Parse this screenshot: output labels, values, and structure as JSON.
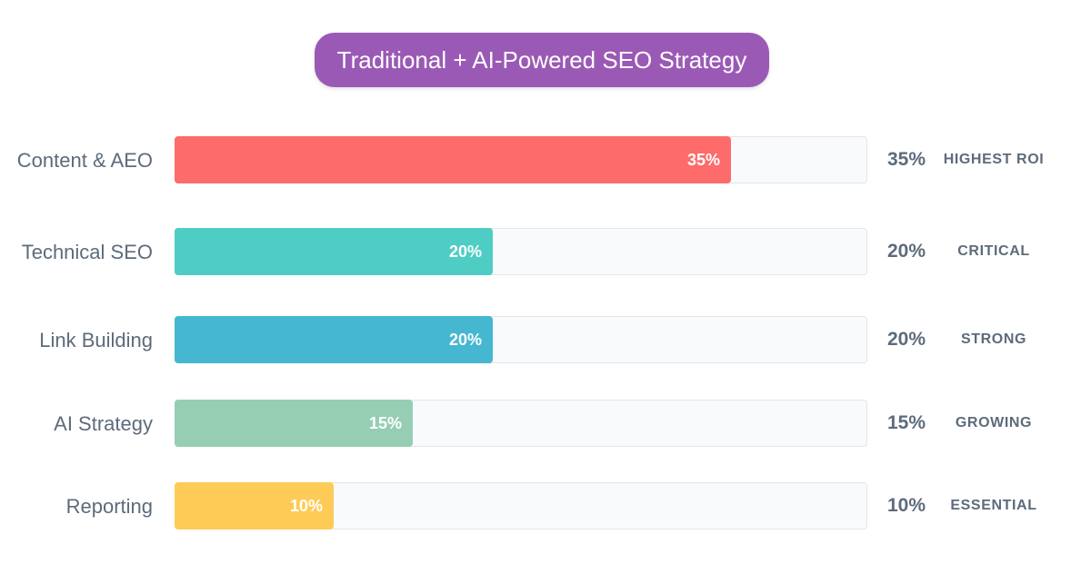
{
  "chart_data": {
    "type": "bar",
    "orientation": "horizontal",
    "title": "Traditional + AI-Powered SEO Strategy",
    "title_color": "#9b59b6",
    "track_color": "#f8fafc",
    "value_max": 43.6,
    "categories": [
      {
        "label": "Content & AEO",
        "value": 35,
        "value_text": "35%",
        "tag": "HIGHEST ROI",
        "color": "#fe6b6b"
      },
      {
        "label": "Technical SEO",
        "value": 20,
        "value_text": "20%",
        "tag": "CRITICAL",
        "color": "#4ecdc4"
      },
      {
        "label": "Link Building",
        "value": 20,
        "value_text": "20%",
        "tag": "STRONG",
        "color": "#45b7d1"
      },
      {
        "label": "AI Strategy",
        "value": 15,
        "value_text": "15%",
        "tag": "GROWING",
        "color": "#96ceb4"
      },
      {
        "label": "Reporting",
        "value": 10,
        "value_text": "10%",
        "tag": "ESSENTIAL",
        "color": "#fecb57"
      }
    ]
  }
}
